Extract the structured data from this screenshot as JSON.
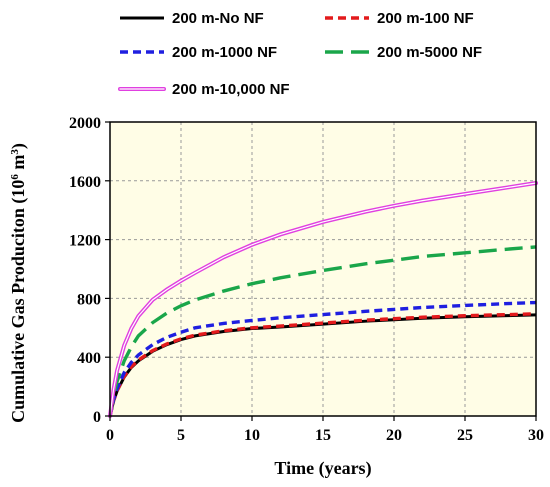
{
  "chart_data": {
    "type": "line",
    "xlabel": "Time (years)",
    "ylabel": "Cumulative Gas Produciton (10",
    "ylabel_sup": "6",
    "ylabel_unit": " m",
    "ylabel_unit_sup": "3",
    "ylabel_close": ")",
    "xlim": [
      0,
      30
    ],
    "ylim": [
      0,
      2000
    ],
    "xticks": [
      0,
      5,
      10,
      15,
      20,
      25,
      30
    ],
    "yticks": [
      0,
      400,
      800,
      1200,
      1600,
      2000
    ],
    "grid": true,
    "legend_position": "top",
    "plot_background": "#fffde6",
    "series": [
      {
        "name": "200 m-No NF",
        "color": "#000000",
        "style": "solid",
        "x": [
          0,
          0.25,
          0.5,
          1,
          1.5,
          2,
          3,
          4,
          5,
          6,
          8,
          10,
          12,
          15,
          18,
          20,
          22,
          25,
          28,
          30
        ],
        "y": [
          0,
          100,
          170,
          265,
          330,
          375,
          440,
          485,
          520,
          545,
          575,
          595,
          605,
          625,
          645,
          655,
          665,
          675,
          683,
          688
        ]
      },
      {
        "name": "200 m-100 NF",
        "color": "#e31a1c",
        "style": "dashed",
        "x": [
          0,
          0.25,
          0.5,
          1,
          1.5,
          2,
          3,
          4,
          5,
          6,
          8,
          10,
          12,
          15,
          18,
          20,
          22,
          25,
          28,
          30
        ],
        "y": [
          0,
          102,
          173,
          270,
          335,
          380,
          445,
          490,
          525,
          550,
          580,
          600,
          612,
          632,
          652,
          662,
          672,
          682,
          690,
          695
        ]
      },
      {
        "name": "200 m-1000 NF",
        "color": "#1f1fe0",
        "style": "dashed",
        "x": [
          0,
          0.25,
          0.5,
          1,
          1.5,
          2,
          3,
          4,
          5,
          6,
          8,
          10,
          12,
          15,
          18,
          20,
          22,
          25,
          28,
          30
        ],
        "y": [
          0,
          110,
          185,
          295,
          365,
          415,
          485,
          535,
          570,
          600,
          630,
          650,
          668,
          690,
          712,
          725,
          738,
          752,
          765,
          772
        ]
      },
      {
        "name": "200 m-5000 NF",
        "color": "#1aa64a",
        "style": "longdash",
        "x": [
          0,
          0.25,
          0.5,
          1,
          1.5,
          2,
          3,
          4,
          5,
          6,
          8,
          10,
          12,
          15,
          18,
          20,
          22,
          25,
          28,
          30
        ],
        "y": [
          0,
          140,
          235,
          375,
          470,
          545,
          635,
          700,
          750,
          790,
          850,
          900,
          940,
          990,
          1035,
          1060,
          1085,
          1110,
          1135,
          1150
        ]
      },
      {
        "name": "200 m-10,000 NF",
        "color": "#e040e0",
        "style": "double",
        "x": [
          0,
          0.25,
          0.5,
          1,
          1.5,
          2,
          3,
          4,
          5,
          6,
          8,
          10,
          12,
          15,
          18,
          20,
          22,
          25,
          28,
          30
        ],
        "y": [
          0,
          180,
          310,
          480,
          595,
          680,
          790,
          860,
          920,
          975,
          1080,
          1165,
          1235,
          1320,
          1390,
          1430,
          1465,
          1510,
          1555,
          1585
        ]
      }
    ]
  }
}
